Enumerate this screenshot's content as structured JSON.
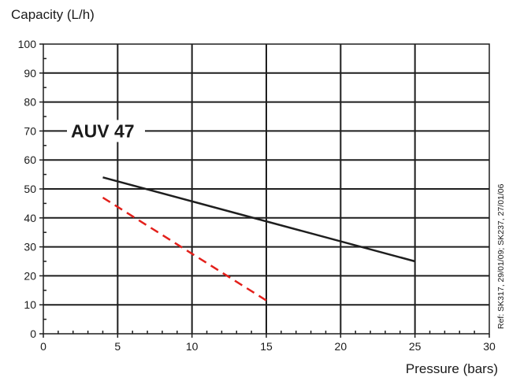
{
  "chart_data": {
    "type": "line",
    "title": "",
    "ylabel": "Capacity (L/h)",
    "xlabel": "Pressure (bars)",
    "xlim": [
      0,
      30
    ],
    "ylim": [
      0,
      100
    ],
    "x_ticks": [
      0,
      5,
      10,
      15,
      20,
      25,
      30
    ],
    "y_ticks": [
      0,
      10,
      20,
      30,
      40,
      50,
      60,
      70,
      80,
      90,
      100
    ],
    "x_tick_labels": [
      "0",
      "5",
      "10",
      "15",
      "20",
      "25",
      "30"
    ],
    "y_tick_labels": [
      "0",
      "10",
      "20",
      "30",
      "40",
      "50",
      "60",
      "70",
      "80",
      "90",
      "100"
    ],
    "grid": true,
    "annotation": "AUV 47",
    "reference": "Ref: SK317, 29/01/09; SK237, 27/01/06",
    "series": [
      {
        "style": "solid",
        "color": "#1e1e1e",
        "points": [
          [
            4,
            54
          ],
          [
            25,
            25
          ]
        ]
      },
      {
        "style": "dashed",
        "color": "#e3201b",
        "points": [
          [
            4,
            47
          ],
          [
            15,
            11.5
          ]
        ]
      }
    ]
  }
}
